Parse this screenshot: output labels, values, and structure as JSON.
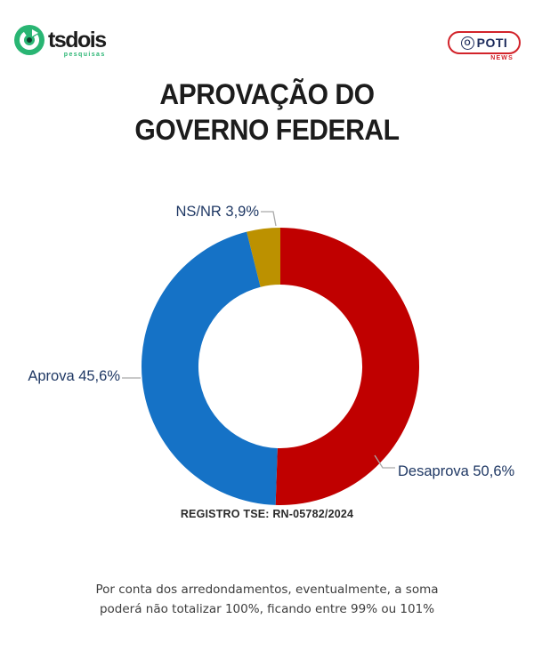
{
  "header": {
    "tsdois_logo": {
      "text": "tsdois",
      "tagline": "pesquisas",
      "brand_green": "#29B573"
    },
    "opoti_logo": {
      "o": "O",
      "rest": "POTI",
      "sub": "NEWS",
      "border_red": "#D2232A",
      "navy": "#1B2A5B"
    }
  },
  "title": {
    "line1": "APROVAÇÃO DO",
    "line2": "GOVERNO FEDERAL"
  },
  "chart_data": {
    "type": "pie",
    "subtype": "donut",
    "title": "Aprovação do Governo Federal",
    "unit": "%",
    "start_angle_deg": 0,
    "direction": "clockwise",
    "inner_radius_ratio": 0.59,
    "slices": [
      {
        "label": "Desaprova",
        "value": 50.6,
        "display": "Desaprova 50,6%",
        "color": "#C00000"
      },
      {
        "label": "Aprova",
        "value": 45.6,
        "display": "Aprova 45,6%",
        "color": "#1572C6"
      },
      {
        "label": "NS/NR",
        "value": 3.9,
        "display": "NS/NR 3,9%",
        "color": "#BC9100"
      }
    ],
    "label_color": "#1F3864",
    "leader_line_color": "#A9A9A9"
  },
  "registro": "REGISTRO TSE: RN-05782/2024",
  "footnote": {
    "line1": "Por conta dos arredondamentos, eventualmente, a soma",
    "line2": "poderá não totalizar 100%, ficando entre 99% ou 101%"
  }
}
